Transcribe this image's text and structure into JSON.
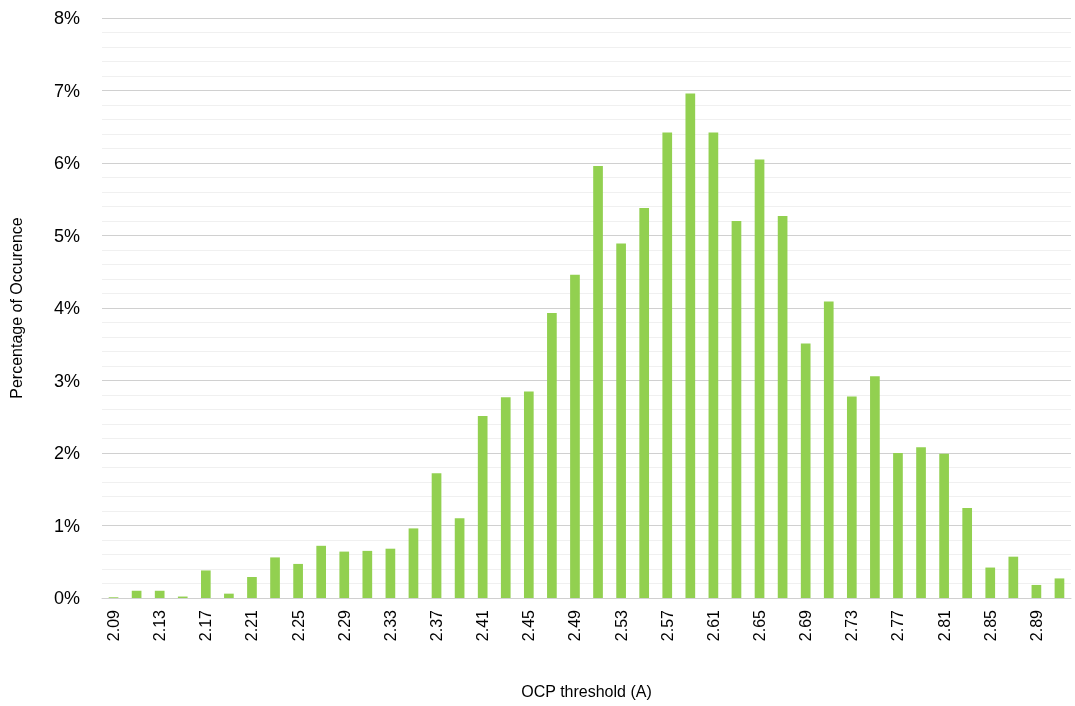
{
  "chart_data": {
    "type": "bar",
    "xlabel": "OCP threshold (A)",
    "ylabel": "Percentage of Occurence",
    "categories": [
      "2.09",
      null,
      "2.13",
      null,
      "2.17",
      null,
      "2.21",
      null,
      "2.25",
      null,
      "2.29",
      null,
      "2.33",
      null,
      "2.37",
      null,
      "2.41",
      null,
      "2.45",
      null,
      "2.49",
      null,
      "2.53",
      null,
      "2.57",
      null,
      "2.61",
      null,
      "2.65",
      null,
      "2.69",
      null,
      "2.73",
      null,
      "2.77",
      null,
      "2.81",
      null,
      "2.85",
      null,
      "2.89",
      null
    ],
    "values": [
      0.01,
      0.1,
      0.1,
      0.02,
      0.38,
      0.06,
      0.29,
      0.56,
      0.47,
      0.72,
      0.64,
      0.65,
      0.68,
      0.96,
      1.72,
      1.1,
      2.51,
      2.77,
      2.85,
      3.93,
      4.46,
      5.96,
      4.89,
      5.38,
      6.42,
      6.96,
      6.42,
      5.2,
      6.05,
      5.27,
      3.51,
      4.09,
      2.78,
      3.06,
      2.0,
      2.08,
      1.99,
      1.24,
      0.42,
      0.57,
      0.18,
      0.27
    ],
    "color": "#92d050",
    "ylim": [
      0,
      8
    ],
    "yticks": [
      {
        "value": 0,
        "label": "0%"
      },
      {
        "value": 1,
        "label": "1%"
      },
      {
        "value": 2,
        "label": "2%"
      },
      {
        "value": 3,
        "label": "3%"
      },
      {
        "value": 4,
        "label": "4%"
      },
      {
        "value": 5,
        "label": "5%"
      },
      {
        "value": 6,
        "label": "6%"
      },
      {
        "value": 7,
        "label": "7%"
      },
      {
        "value": 8,
        "label": "8%"
      }
    ],
    "grid": "y"
  }
}
